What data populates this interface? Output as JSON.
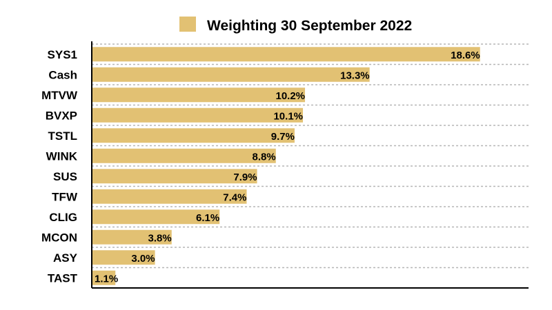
{
  "chart_data": {
    "type": "bar",
    "orientation": "horizontal",
    "categories": [
      "SYS1",
      "Cash",
      "MTVW",
      "BVXP",
      "TSTL",
      "WINK",
      "SUS",
      "TFW",
      "CLIG",
      "MCON",
      "ASY",
      "TAST"
    ],
    "series": [
      {
        "name": "Weighting 30 September 2022",
        "values": [
          18.6,
          13.3,
          10.2,
          10.1,
          9.7,
          8.8,
          7.9,
          7.4,
          6.1,
          3.8,
          3.0,
          1.1
        ],
        "labels": [
          "18.6%",
          "13.3%",
          "10.2%",
          "10.1%",
          "9.7%",
          "8.8%",
          "7.9%",
          "7.4%",
          "6.1%",
          "3.8%",
          "3.0%",
          "1.1%"
        ]
      }
    ],
    "xlim": [
      0,
      20
    ],
    "gridlines": "dotted horizontal",
    "legend_position": "top",
    "bar_color": "#E2C173"
  }
}
